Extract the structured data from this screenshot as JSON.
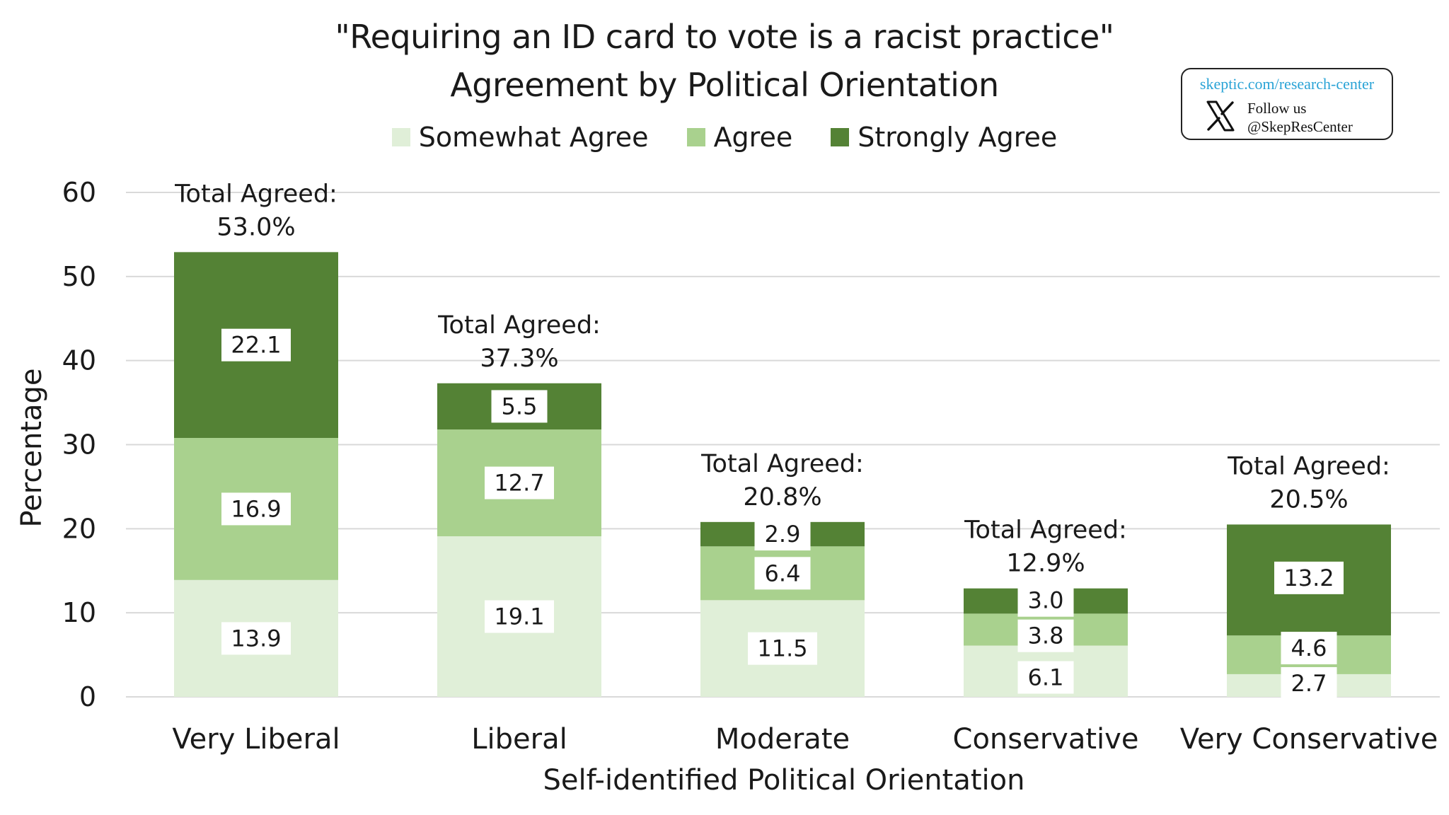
{
  "title": {
    "line1": "\"Requiring an ID card to vote is a racist practice\"",
    "line2": "Agreement by Political Orientation"
  },
  "social": {
    "url": "skeptic.com/research-center",
    "follow": "Follow us",
    "handle": "@SkepResCenter",
    "icon": "x-logo-icon"
  },
  "colors": {
    "somewhat": "#e0efd8",
    "agree": "#a9d18e",
    "strongly": "#548235",
    "gridline": "#d9d9d9",
    "link": "#2aa3d6"
  },
  "chart_data": {
    "type": "bar",
    "stacked": true,
    "title": "\"Requiring an ID card to vote is a racist practice\" Agreement by Political Orientation",
    "xlabel": "Self-identified Political Orientation",
    "ylabel": "Percentage",
    "ylim": [
      0,
      60
    ],
    "yticks": [
      0,
      10,
      20,
      30,
      40,
      50,
      60
    ],
    "grid": true,
    "legend_position": "top",
    "categories": [
      "Very Liberal",
      "Liberal",
      "Moderate",
      "Conservative",
      "Very Conservative"
    ],
    "series": [
      {
        "name": "Somewhat Agree",
        "color": "#e0efd8",
        "values": [
          13.9,
          19.1,
          11.5,
          6.1,
          2.7
        ],
        "labels": [
          "13.9",
          "19.1",
          "11.5",
          "6.1",
          "2.7"
        ]
      },
      {
        "name": "Agree",
        "color": "#a9d18e",
        "values": [
          16.9,
          12.7,
          6.4,
          3.8,
          4.6
        ],
        "labels": [
          "16.9",
          "12.7",
          "6.4",
          "3.8",
          "4.6"
        ]
      },
      {
        "name": "Strongly Agree",
        "color": "#548235",
        "values": [
          22.1,
          5.5,
          2.9,
          3.0,
          13.2
        ],
        "labels": [
          "22.1",
          "5.5",
          "2.9",
          "3.0",
          "13.2"
        ]
      }
    ],
    "totals": {
      "prefix": "Total Agreed:",
      "values": [
        53.0,
        37.3,
        20.8,
        12.9,
        20.5
      ],
      "labels": [
        "53.0%",
        "37.3%",
        "20.8%",
        "12.9%",
        "20.5%"
      ]
    }
  }
}
